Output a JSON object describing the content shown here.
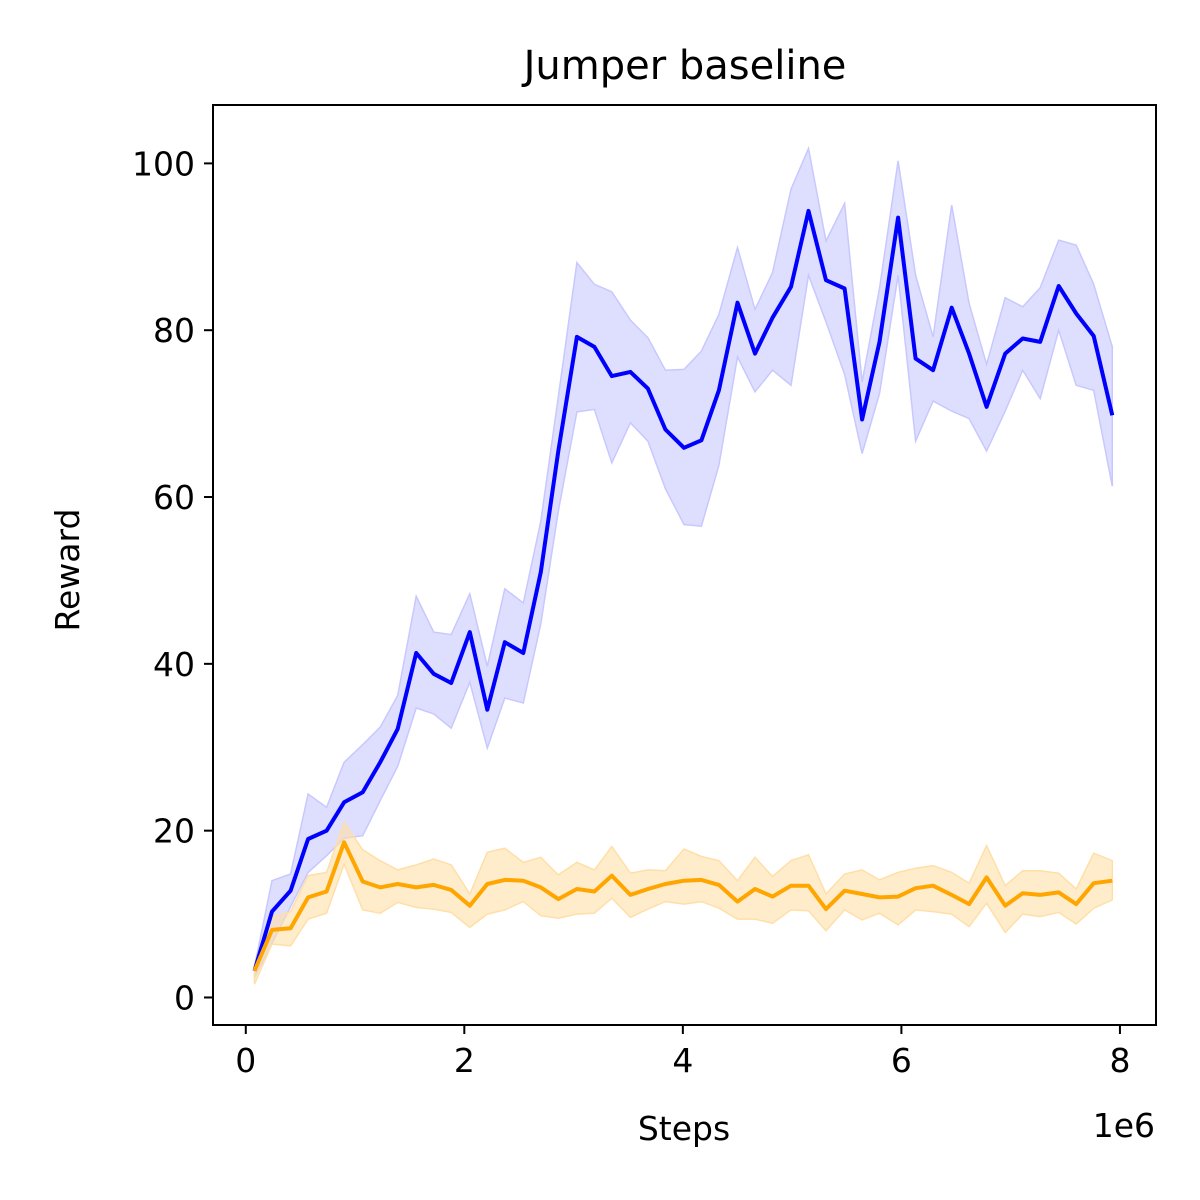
{
  "chart_data": {
    "type": "line",
    "title": "Jumper baseline",
    "xlabel": "Steps",
    "ylabel": "Reward",
    "x_offset_label": "1e6",
    "xlim": [
      -0.3,
      8.33
    ],
    "ylim": [
      -3.3,
      107
    ],
    "xticks": [
      0,
      2,
      4,
      6,
      8
    ],
    "xtick_labels": [
      "0",
      "2",
      "4",
      "6",
      "8"
    ],
    "yticks": [
      0,
      20,
      40,
      60,
      80,
      100
    ],
    "ytick_labels": [
      "0",
      "20",
      "40",
      "60",
      "80",
      "100"
    ],
    "grid": false,
    "x": [
      0.08,
      0.24,
      0.41,
      0.57,
      0.74,
      0.9,
      1.07,
      1.23,
      1.39,
      1.56,
      1.72,
      1.88,
      2.05,
      2.21,
      2.37,
      2.54,
      2.7,
      2.86,
      3.03,
      3.19,
      3.35,
      3.52,
      3.68,
      3.84,
      4.01,
      4.17,
      4.33,
      4.5,
      4.66,
      4.82,
      4.99,
      5.15,
      5.31,
      5.48,
      5.64,
      5.8,
      5.97,
      6.13,
      6.29,
      6.46,
      6.62,
      6.78,
      6.95,
      7.11,
      7.27,
      7.44,
      7.6,
      7.76,
      7.93
    ],
    "series": [
      {
        "color": "#0000ff",
        "band_color": "#c8c8ff",
        "values": [
          3.2,
          10.3,
          12.8,
          19.0,
          20.0,
          23.4,
          24.6,
          28.2,
          32.2,
          41.3,
          38.8,
          37.7,
          43.8,
          34.5,
          42.6,
          41.3,
          51.0,
          65.5,
          79.2,
          78.0,
          74.5,
          75.0,
          73.0,
          68.1,
          65.9,
          66.8,
          72.8,
          83.3,
          77.2,
          81.5,
          85.2,
          94.3,
          86.0,
          85.0,
          69.3,
          78.6,
          93.5,
          76.6,
          75.2,
          82.7,
          77.2,
          70.8,
          77.2,
          79.0,
          78.6,
          85.3,
          82.0,
          79.3,
          69.8
        ],
        "upper": [
          3.7,
          14.0,
          14.8,
          24.4,
          22.8,
          28.2,
          30.3,
          32.4,
          36.2,
          48.1,
          43.8,
          43.5,
          48.4,
          39.7,
          49.0,
          47.3,
          57.1,
          72.0,
          88.1,
          85.5,
          84.6,
          81.2,
          79.1,
          75.2,
          75.3,
          77.5,
          81.9,
          89.9,
          82.5,
          86.9,
          96.9,
          101.8,
          90.7,
          95.2,
          73.8,
          85.0,
          100.3,
          86.6,
          79.2,
          95.0,
          83.2,
          75.9,
          83.9,
          82.8,
          85.1,
          90.8,
          90.2,
          85.5,
          78.0
        ],
        "lower": [
          2.4,
          6.5,
          10.9,
          15.0,
          17.0,
          19.1,
          19.4,
          23.6,
          27.7,
          34.7,
          34.0,
          32.3,
          37.8,
          29.9,
          35.9,
          35.3,
          44.8,
          58.3,
          70.2,
          70.5,
          64.1,
          68.9,
          66.7,
          61.0,
          56.7,
          56.5,
          63.8,
          76.8,
          72.6,
          75.2,
          73.4,
          86.6,
          81.0,
          74.7,
          65.2,
          72.4,
          86.6,
          66.7,
          71.5,
          70.3,
          69.4,
          65.5,
          70.3,
          75.2,
          71.8,
          80.0,
          73.4,
          72.8,
          61.3
        ]
      },
      {
        "color": "#ffa500",
        "band_color": "#ffdfa8",
        "values": [
          3.2,
          8.1,
          8.3,
          12.0,
          12.7,
          18.6,
          13.9,
          13.2,
          13.6,
          13.2,
          13.5,
          12.9,
          11.0,
          13.6,
          14.1,
          14.0,
          13.2,
          11.8,
          13.0,
          12.7,
          14.6,
          12.3,
          13.0,
          13.6,
          14.0,
          14.1,
          13.5,
          11.5,
          13.0,
          12.1,
          13.4,
          13.4,
          10.6,
          12.8,
          12.4,
          12.0,
          12.1,
          13.1,
          13.4,
          12.3,
          11.2,
          14.4,
          11.0,
          12.5,
          12.3,
          12.6,
          11.2,
          13.7,
          14.0
        ],
        "upper": [
          3.8,
          9.6,
          10.3,
          14.6,
          15.0,
          21.0,
          17.7,
          16.4,
          15.3,
          15.9,
          16.6,
          15.9,
          12.4,
          17.4,
          17.9,
          16.2,
          16.8,
          14.7,
          16.2,
          15.3,
          18.1,
          14.9,
          15.3,
          15.2,
          17.8,
          16.9,
          16.4,
          14.0,
          16.8,
          14.5,
          16.4,
          17.1,
          12.4,
          14.8,
          15.3,
          14.1,
          15.0,
          15.5,
          15.8,
          15.0,
          13.7,
          18.2,
          13.4,
          15.2,
          15.2,
          14.9,
          13.0,
          17.3,
          16.4
        ],
        "lower": [
          1.6,
          6.4,
          6.2,
          9.4,
          10.1,
          16.0,
          10.5,
          10.1,
          11.4,
          10.8,
          10.6,
          10.2,
          8.4,
          10.0,
          10.5,
          11.5,
          9.8,
          9.5,
          10.0,
          10.1,
          11.9,
          9.6,
          10.6,
          11.5,
          11.2,
          11.5,
          10.7,
          9.4,
          9.4,
          8.9,
          10.5,
          10.4,
          8.0,
          10.5,
          9.3,
          10.1,
          8.7,
          10.5,
          10.3,
          10.0,
          8.5,
          11.3,
          7.8,
          10.0,
          9.7,
          10.2,
          8.8,
          10.7,
          11.7
        ]
      }
    ]
  }
}
